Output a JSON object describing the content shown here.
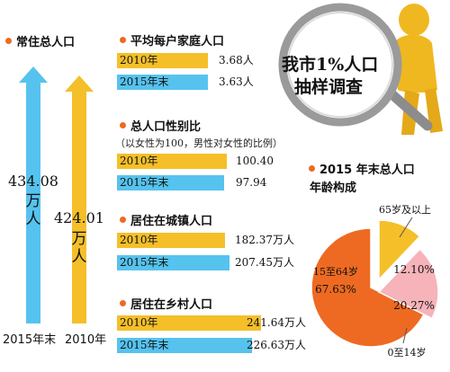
{
  "colors": {
    "accent": "#ee6a22",
    "yellow": "#f4bf29",
    "blue": "#56c3ee",
    "pink": "#f6b3b9"
  },
  "stamp": {
    "line1": "我市1%人口",
    "line2": "抽样调查"
  },
  "resident": {
    "title": "常住总人口",
    "bars": [
      {
        "period": "2015年末",
        "value": "434.08",
        "unit": "万人"
      },
      {
        "period": "2010年",
        "value": "424.01",
        "unit": "万人"
      }
    ]
  },
  "sections": [
    {
      "title": "平均每户家庭人口",
      "note": "",
      "rows": [
        {
          "period": "2010年",
          "value": "3.68人"
        },
        {
          "period": "2015年末",
          "value": "3.63人"
        }
      ]
    },
    {
      "title": "总人口性别比",
      "note": "（以女性为100，男性对女性的比例）",
      "rows": [
        {
          "period": "2010年",
          "value": "100.40"
        },
        {
          "period": "2015年末",
          "value": "97.94"
        }
      ]
    },
    {
      "title": "居住在城镇人口",
      "note": "",
      "rows": [
        {
          "period": "2010年",
          "value": "182.37万人"
        },
        {
          "period": "2015年末",
          "value": "207.45万人"
        }
      ]
    },
    {
      "title": "居住在乡村人口",
      "note": "",
      "rows": [
        {
          "period": "2010年",
          "value": "241.64万人"
        },
        {
          "period": "2015年末",
          "value": "226.63万人"
        }
      ]
    }
  ],
  "age": {
    "title_line1": "2015 年末总人口",
    "title_line2": "年龄构成"
  },
  "chart_data": [
    {
      "type": "bar",
      "title": "常住总人口",
      "categories": [
        "2015年末",
        "2010年"
      ],
      "values": [
        434.08,
        424.01
      ],
      "unit": "万人"
    },
    {
      "type": "bar",
      "title": "平均每户家庭人口",
      "categories": [
        "2010年",
        "2015年末"
      ],
      "values": [
        3.68,
        3.63
      ],
      "unit": "人"
    },
    {
      "type": "bar",
      "title": "总人口性别比",
      "categories": [
        "2010年",
        "2015年末"
      ],
      "values": [
        100.4,
        97.94
      ]
    },
    {
      "type": "bar",
      "title": "居住在城镇人口",
      "categories": [
        "2010年",
        "2015年末"
      ],
      "values": [
        182.37,
        207.45
      ],
      "unit": "万人"
    },
    {
      "type": "bar",
      "title": "居住在乡村人口",
      "categories": [
        "2010年",
        "2015年末"
      ],
      "values": [
        241.64,
        226.63
      ],
      "unit": "万人"
    },
    {
      "type": "pie",
      "title": "2015 年末总人口年龄构成",
      "slices": [
        {
          "label": "15至64岁",
          "value": 67.63,
          "display": "67.63%",
          "color": "#ee6a22"
        },
        {
          "label": "0至14岁",
          "value": 20.27,
          "display": "20.27%",
          "color": "#f6b3b9"
        },
        {
          "label": "65岁及以上",
          "value": 12.1,
          "display": "12.10%",
          "color": "#f4bf29"
        }
      ]
    }
  ]
}
